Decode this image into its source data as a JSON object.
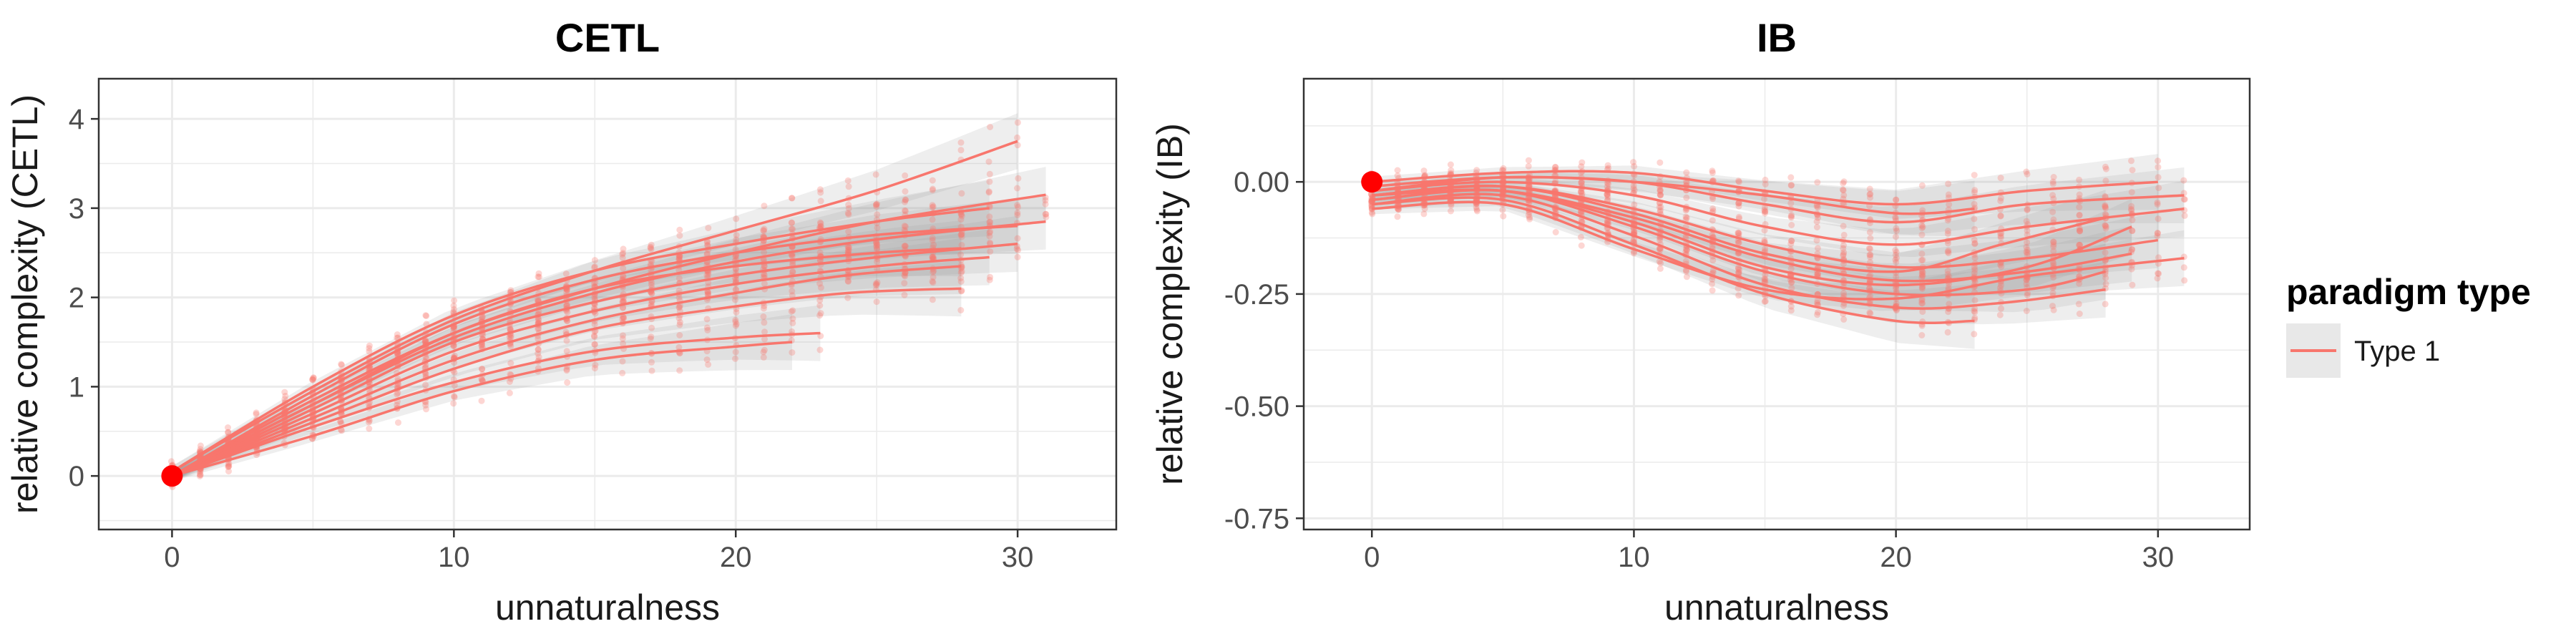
{
  "legend": {
    "title": "paradigm type",
    "entries": [
      {
        "label": "Type 1",
        "color": "#F8766D"
      }
    ]
  },
  "colors": {
    "line": "#F8766D",
    "point": "#F8766D",
    "ribbon": "#999999",
    "highlight": "#FF0000",
    "panel_border": "#333333",
    "grid": "#EBEBEB"
  },
  "chart_data": [
    {
      "type": "scatter",
      "title": "CETL",
      "xlabel": "unnaturalness",
      "ylabel": "relative complexity (CETL)",
      "xlim": [
        -2.6,
        33.5
      ],
      "ylim": [
        -0.6,
        4.45
      ],
      "xticks": [
        0,
        10,
        20,
        30
      ],
      "xtick_labels": [
        "0",
        "10",
        "20",
        "30"
      ],
      "yticks": [
        0,
        1,
        2,
        3,
        4
      ],
      "ytick_labels": [
        "0",
        "1",
        "2",
        "3",
        "4"
      ],
      "highlight_point": {
        "x": 0,
        "y": 0
      },
      "series": [
        {
          "x": [
            0,
            5,
            10,
            15,
            20,
            25,
            30
          ],
          "y": [
            0.05,
            0.95,
            1.75,
            2.3,
            2.75,
            3.2,
            3.75
          ]
        },
        {
          "x": [
            0,
            5,
            10,
            15,
            20,
            25,
            31
          ],
          "y": [
            0.0,
            0.85,
            1.6,
            2.1,
            2.5,
            2.85,
            3.15
          ]
        },
        {
          "x": [
            0,
            5,
            10,
            15,
            20,
            25,
            31
          ],
          "y": [
            0.0,
            0.8,
            1.55,
            2.05,
            2.4,
            2.65,
            2.85
          ]
        },
        {
          "x": [
            0,
            5,
            10,
            15,
            20,
            25,
            30
          ],
          "y": [
            0.0,
            0.75,
            1.5,
            1.95,
            2.25,
            2.45,
            2.6
          ]
        },
        {
          "x": [
            0,
            5,
            10,
            15,
            20,
            25,
            29
          ],
          "y": [
            0.0,
            0.7,
            1.4,
            1.85,
            2.15,
            2.35,
            2.45
          ]
        },
        {
          "x": [
            0,
            5,
            10,
            15,
            20,
            24,
            28
          ],
          "y": [
            0.0,
            0.65,
            1.3,
            1.75,
            2.05,
            2.25,
            2.35
          ]
        },
        {
          "x": [
            0,
            5,
            10,
            15,
            20,
            24,
            28
          ],
          "y": [
            0.0,
            0.6,
            1.2,
            1.65,
            1.9,
            2.05,
            2.1
          ]
        },
        {
          "x": [
            0,
            5,
            10,
            15,
            20,
            23
          ],
          "y": [
            0.0,
            0.55,
            1.05,
            1.4,
            1.55,
            1.6
          ]
        },
        {
          "x": [
            0,
            5,
            10,
            15,
            20,
            22
          ],
          "y": [
            0.0,
            0.45,
            0.95,
            1.3,
            1.45,
            1.5
          ]
        },
        {
          "x": [
            0,
            5,
            10,
            15,
            20,
            25,
            29
          ],
          "y": [
            0.05,
            1.0,
            1.8,
            2.3,
            2.6,
            2.85,
            3.0
          ]
        },
        {
          "x": [
            0,
            5,
            10,
            15,
            20,
            25,
            30
          ],
          "y": [
            0.0,
            0.9,
            1.7,
            2.2,
            2.5,
            2.7,
            2.8
          ]
        },
        {
          "x": [
            0,
            5,
            10,
            15,
            20,
            25,
            28
          ],
          "y": [
            0.0,
            0.8,
            1.6,
            2.1,
            2.35,
            2.5,
            2.55
          ]
        }
      ]
    },
    {
      "type": "scatter",
      "title": "IB",
      "xlabel": "unnaturalness",
      "ylabel": "relative complexity (IB)",
      "xlim": [
        -2.6,
        33.5
      ],
      "ylim": [
        -0.775,
        0.23
      ],
      "xticks": [
        0,
        10,
        20,
        30
      ],
      "xtick_labels": [
        "0",
        "10",
        "20",
        "30"
      ],
      "yticks": [
        0.0,
        -0.25,
        -0.5,
        -0.75
      ],
      "ytick_labels": [
        "0.00",
        "-0.25",
        "-0.50",
        "-0.75"
      ],
      "highlight_point": {
        "x": 0,
        "y": 0.0
      },
      "series": [
        {
          "x": [
            0,
            5,
            10,
            15,
            20,
            25,
            30
          ],
          "y": [
            0.0,
            0.02,
            0.02,
            -0.02,
            -0.05,
            -0.02,
            0.0
          ]
        },
        {
          "x": [
            0,
            5,
            10,
            15,
            20,
            25,
            31
          ],
          "y": [
            -0.01,
            0.01,
            0.0,
            -0.05,
            -0.09,
            -0.05,
            -0.03
          ]
        },
        {
          "x": [
            0,
            5,
            10,
            15,
            20,
            25,
            31
          ],
          "y": [
            -0.02,
            0.0,
            -0.03,
            -0.1,
            -0.14,
            -0.1,
            -0.06
          ]
        },
        {
          "x": [
            0,
            5,
            10,
            15,
            20,
            25,
            30
          ],
          "y": [
            -0.03,
            -0.01,
            -0.06,
            -0.14,
            -0.19,
            -0.17,
            -0.13
          ]
        },
        {
          "x": [
            0,
            5,
            10,
            15,
            20,
            25,
            29
          ],
          "y": [
            -0.03,
            -0.02,
            -0.08,
            -0.17,
            -0.22,
            -0.2,
            -0.16
          ]
        },
        {
          "x": [
            0,
            5,
            10,
            15,
            20,
            25,
            28
          ],
          "y": [
            -0.04,
            -0.02,
            -0.1,
            -0.2,
            -0.25,
            -0.24,
            -0.2
          ]
        },
        {
          "x": [
            0,
            5,
            10,
            15,
            20,
            24,
            28
          ],
          "y": [
            -0.05,
            -0.03,
            -0.12,
            -0.23,
            -0.28,
            -0.27,
            -0.24
          ]
        },
        {
          "x": [
            0,
            5,
            10,
            15,
            20,
            23
          ],
          "y": [
            -0.05,
            -0.04,
            -0.14,
            -0.25,
            -0.31,
            -0.31
          ]
        },
        {
          "x": [
            0,
            5,
            10,
            15,
            20,
            25,
            31
          ],
          "y": [
            -0.06,
            -0.05,
            -0.15,
            -0.24,
            -0.26,
            -0.21,
            -0.17
          ]
        },
        {
          "x": [
            0,
            5,
            10,
            15,
            20,
            24,
            28
          ],
          "y": [
            -0.03,
            -0.01,
            -0.07,
            -0.16,
            -0.2,
            -0.14,
            -0.08
          ]
        },
        {
          "x": [
            0,
            5,
            10,
            15,
            20,
            23
          ],
          "y": [
            -0.02,
            0.01,
            0.0,
            -0.03,
            -0.07,
            -0.06
          ]
        },
        {
          "x": [
            0,
            5,
            10,
            15,
            20,
            25,
            29
          ],
          "y": [
            -0.04,
            -0.02,
            -0.09,
            -0.19,
            -0.23,
            -0.19,
            -0.1
          ]
        }
      ]
    }
  ]
}
